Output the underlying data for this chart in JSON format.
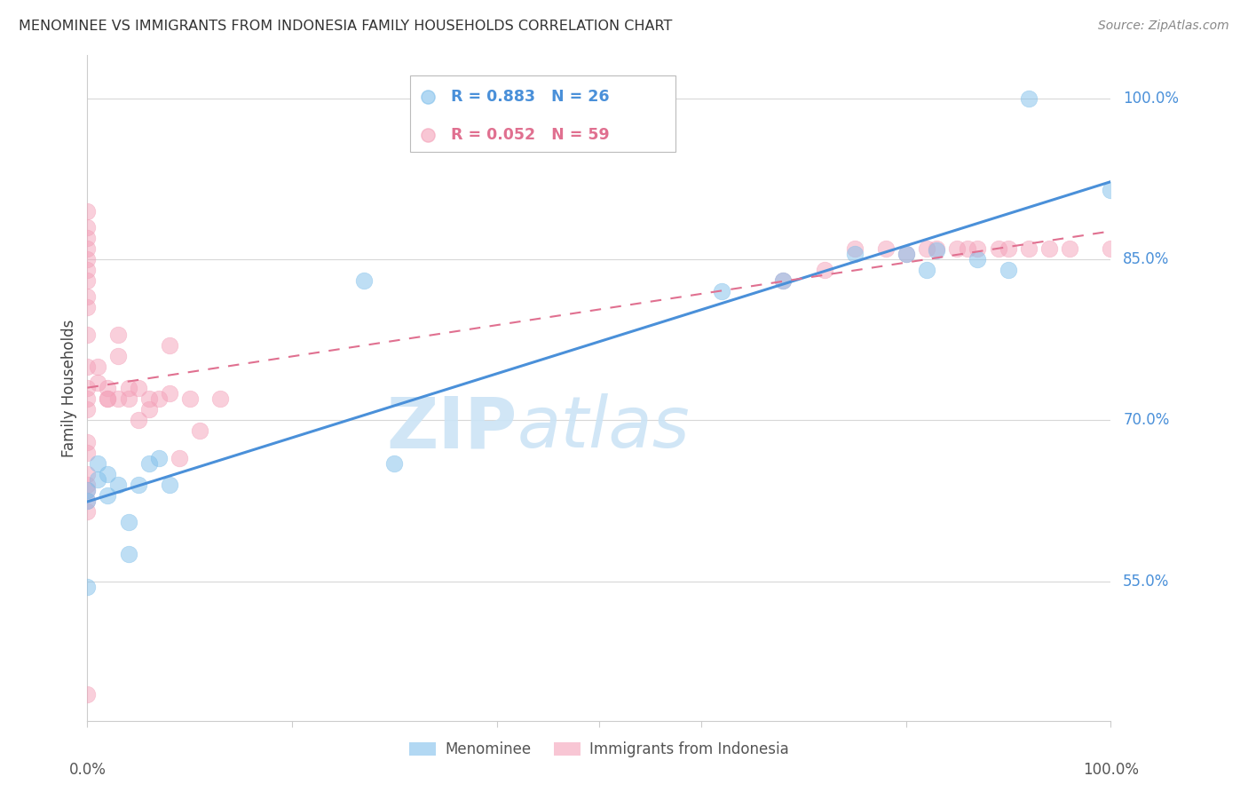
{
  "title": "MENOMINEE VS IMMIGRANTS FROM INDONESIA FAMILY HOUSEHOLDS CORRELATION CHART",
  "source": "Source: ZipAtlas.com",
  "ylabel": "Family Households",
  "yticks": [
    0.55,
    0.7,
    0.85,
    1.0
  ],
  "ytick_labels": [
    "55.0%",
    "70.0%",
    "85.0%",
    "100.0%"
  ],
  "xlim": [
    0.0,
    1.0
  ],
  "ylim": [
    0.42,
    1.04
  ],
  "watermark": "ZIPatlas",
  "menominee_color": "#7fbfeb",
  "indonesia_color": "#f4a0b8",
  "menominee_line_color": "#4a90d9",
  "indonesia_line_color": "#e07090",
  "menominee_scatter_x": [
    0.0,
    0.0,
    0.0,
    0.01,
    0.01,
    0.02,
    0.02,
    0.03,
    0.04,
    0.04,
    0.05,
    0.06,
    0.07,
    0.08,
    0.27,
    0.3,
    0.62,
    0.68,
    0.75,
    0.8,
    0.82,
    0.83,
    0.87,
    0.9,
    0.92,
    1.0
  ],
  "menominee_scatter_y": [
    0.625,
    0.635,
    0.545,
    0.645,
    0.66,
    0.63,
    0.65,
    0.64,
    0.575,
    0.605,
    0.64,
    0.66,
    0.665,
    0.64,
    0.83,
    0.66,
    0.82,
    0.83,
    0.855,
    0.855,
    0.84,
    0.858,
    0.85,
    0.84,
    1.0,
    0.915
  ],
  "indonesia_scatter_x": [
    0.0,
    0.0,
    0.0,
    0.0,
    0.0,
    0.0,
    0.0,
    0.0,
    0.0,
    0.0,
    0.0,
    0.0,
    0.0,
    0.0,
    0.0,
    0.0,
    0.0,
    0.0,
    0.0,
    0.0,
    0.0,
    0.0,
    0.01,
    0.01,
    0.02,
    0.02,
    0.02,
    0.03,
    0.03,
    0.03,
    0.04,
    0.04,
    0.05,
    0.05,
    0.06,
    0.06,
    0.07,
    0.08,
    0.08,
    0.09,
    0.1,
    0.11,
    0.13,
    0.68,
    0.72,
    0.75,
    0.78,
    0.8,
    0.82,
    0.83,
    0.85,
    0.86,
    0.87,
    0.89,
    0.9,
    0.92,
    0.94,
    0.96,
    1.0
  ],
  "indonesia_scatter_y": [
    0.88,
    0.895,
    0.87,
    0.86,
    0.85,
    0.84,
    0.83,
    0.815,
    0.805,
    0.78,
    0.75,
    0.73,
    0.72,
    0.71,
    0.68,
    0.67,
    0.65,
    0.64,
    0.635,
    0.625,
    0.615,
    0.445,
    0.75,
    0.735,
    0.73,
    0.72,
    0.72,
    0.78,
    0.76,
    0.72,
    0.73,
    0.72,
    0.73,
    0.7,
    0.72,
    0.71,
    0.72,
    0.77,
    0.725,
    0.665,
    0.72,
    0.69,
    0.72,
    0.83,
    0.84,
    0.86,
    0.86,
    0.855,
    0.86,
    0.86,
    0.86,
    0.86,
    0.86,
    0.86,
    0.86,
    0.86,
    0.86,
    0.86,
    0.86
  ]
}
